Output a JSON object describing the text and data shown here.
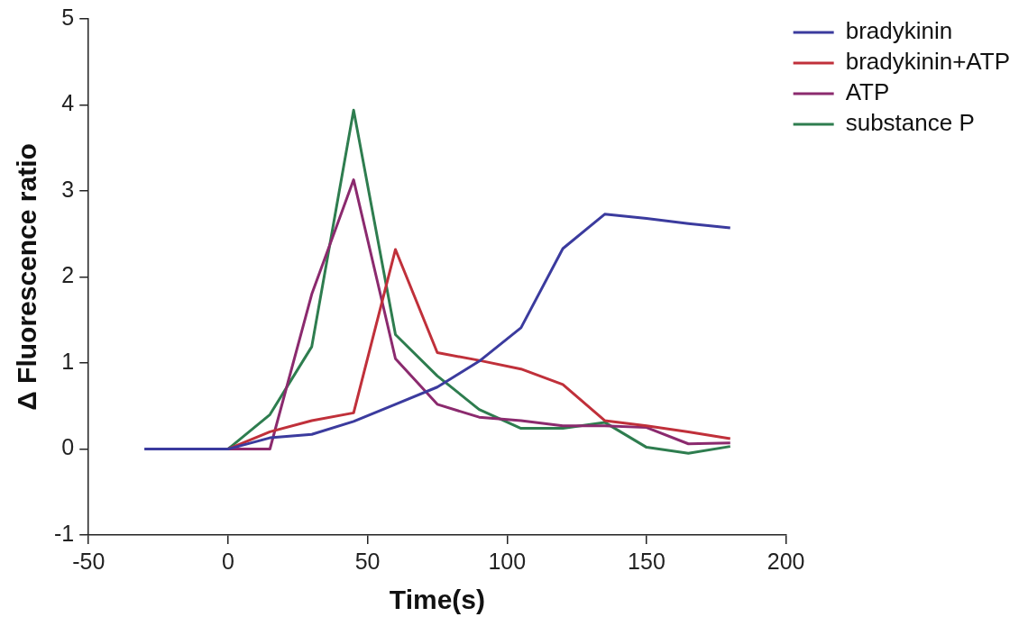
{
  "chart_data": {
    "type": "line",
    "xlabel": "Time(s)",
    "ylabel": "Δ Fluorescence ratio",
    "xlim": [
      -50,
      200
    ],
    "xticks": [
      -50,
      0,
      50,
      100,
      150,
      200
    ],
    "ylim": [
      -1,
      5
    ],
    "yticks": [
      -1,
      0,
      1,
      2,
      3,
      4,
      5
    ],
    "grid": false,
    "legend": "top right",
    "marker": "none",
    "line_style": "solid",
    "series": [
      {
        "name": "bradykinin",
        "color": "#3b3b9e",
        "x": [
          -30,
          -15,
          0,
          15,
          30,
          45,
          60,
          75,
          90,
          105,
          120,
          135,
          150,
          165,
          180
        ],
        "values": [
          0,
          0,
          0,
          0.13,
          0.17,
          0.32,
          0.52,
          0.72,
          1.02,
          1.41,
          2.33,
          2.73,
          2.68,
          2.62,
          2.57
        ]
      },
      {
        "name": "bradykinin+ATP",
        "color": "#c0303a",
        "x": [
          0,
          15,
          30,
          45,
          60,
          75,
          90,
          105,
          120,
          135,
          150,
          165,
          180
        ],
        "values": [
          0,
          0.2,
          0.33,
          0.42,
          2.32,
          1.12,
          1.03,
          0.93,
          0.75,
          0.33,
          0.27,
          0.2,
          0.12
        ]
      },
      {
        "name": "ATP",
        "color": "#8b2a6e",
        "x": [
          0,
          15,
          30,
          45,
          60,
          75,
          90,
          105,
          120,
          135,
          150,
          165,
          180
        ],
        "values": [
          0,
          0,
          1.8,
          3.13,
          1.05,
          0.52,
          0.37,
          0.33,
          0.27,
          0.27,
          0.25,
          0.06,
          0.07
        ]
      },
      {
        "name": "substance P",
        "color": "#2e7d4f",
        "x": [
          0,
          15,
          30,
          45,
          60,
          75,
          90,
          105,
          120,
          135,
          150,
          165,
          180
        ],
        "values": [
          0,
          0.4,
          1.19,
          3.94,
          1.33,
          0.85,
          0.46,
          0.24,
          0.24,
          0.31,
          0.02,
          -0.05,
          0.03
        ]
      }
    ]
  }
}
